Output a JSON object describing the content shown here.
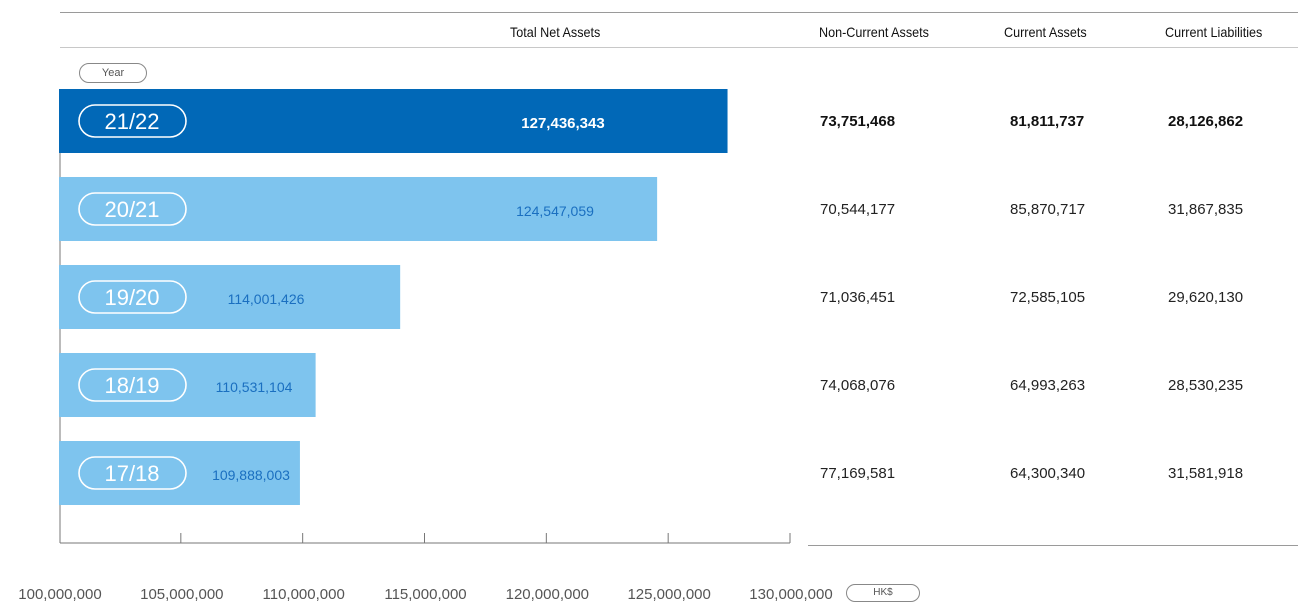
{
  "headers": {
    "total_net_assets": "Total Net Assets",
    "non_current_assets": "Non-Current Assets",
    "current_assets": "Current Assets",
    "current_liabilities": "Current Liabilities"
  },
  "year_label": "Year",
  "unit_label": "HK$",
  "colors": {
    "highlight": "#0168B7",
    "normal": "#7EC4EE",
    "highlight_text": "#ffffff",
    "normal_text": "#1a6fc0"
  },
  "chart_data": {
    "type": "bar",
    "orientation": "horizontal",
    "categories": [
      "21/22",
      "20/21",
      "19/20",
      "18/19",
      "17/18"
    ],
    "values": [
      127436343,
      124547059,
      114001426,
      110531104,
      109888003
    ],
    "value_labels": [
      "127,436,343",
      "124,547,059",
      "114,001,426",
      "110,531,104",
      "109,888,003"
    ],
    "xlim": [
      100000000,
      130000000
    ],
    "ticks": [
      100000000,
      105000000,
      110000000,
      115000000,
      120000000,
      125000000,
      130000000
    ],
    "tick_labels": [
      "100,000,000",
      "105,000,000",
      "110,000,000",
      "115,000,000",
      "120,000,000",
      "125,000,000",
      "130,000,000"
    ],
    "highlight_index": 0
  },
  "rows": [
    {
      "non_current": "73,751,468",
      "current": "81,811,737",
      "liabilities": "28,126,862"
    },
    {
      "non_current": "70,544,177",
      "current": "85,870,717",
      "liabilities": "31,867,835"
    },
    {
      "non_current": "71,036,451",
      "current": "72,585,105",
      "liabilities": "29,620,130"
    },
    {
      "non_current": "74,068,076",
      "current": "64,993,263",
      "liabilities": "28,530,235"
    },
    {
      "non_current": "77,169,581",
      "current": "64,300,340",
      "liabilities": "31,581,918"
    }
  ]
}
